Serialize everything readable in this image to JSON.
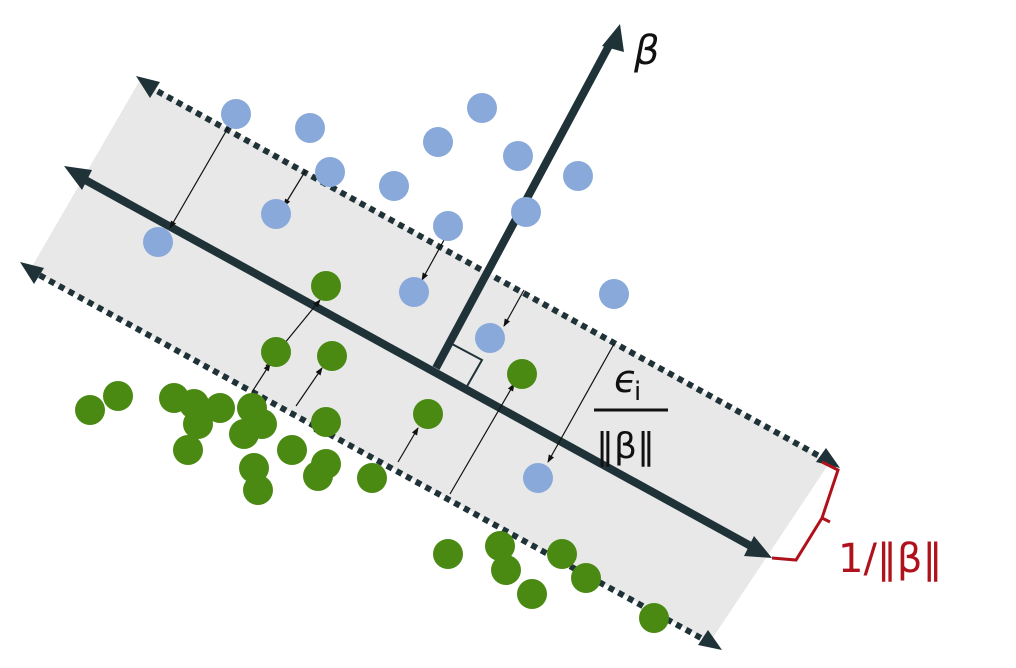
{
  "labels": {
    "beta": "β",
    "epsilon_num": "ϵ",
    "epsilon_sub": "i",
    "epsilon_den": "‖β‖",
    "margin": "1/‖β‖"
  },
  "colors": {
    "band_fill": "#e8e8e8",
    "line": "#1f3238",
    "blue_point": "#88a9d9",
    "green_point": "#4a8a12",
    "margin_bracket": "#b0121c"
  }
}
